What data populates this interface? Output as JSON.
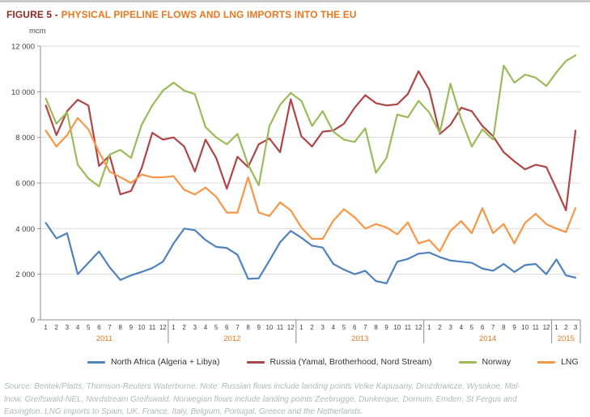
{
  "title": {
    "prefix": "FIGURE 5 -",
    "text": "PHYSICAL PIPELINE FLOWS AND LNG IMPORTS INTO THE EU"
  },
  "chart_data": {
    "type": "line",
    "unit_label": "mcm",
    "ylim": [
      0,
      12000
    ],
    "ytick_interval": 2000,
    "ytick_labels": [
      "0",
      "2 000",
      "4 000",
      "6 000",
      "8 000",
      "10 000",
      "12 000"
    ],
    "grid": true,
    "legend_position": "bottom",
    "year_bands": [
      {
        "year": "2011",
        "months": 12
      },
      {
        "year": "2012",
        "months": 12
      },
      {
        "year": "2013",
        "months": 12
      },
      {
        "year": "2014",
        "months": 12
      },
      {
        "year": "2015",
        "months": 3
      }
    ],
    "x_month_labels": [
      "1",
      "2",
      "3",
      "4",
      "5",
      "6",
      "7",
      "8",
      "9",
      "10",
      "11",
      "12",
      "1",
      "2",
      "3",
      "4",
      "5",
      "6",
      "7",
      "8",
      "9",
      "10",
      "11",
      "12",
      "1",
      "2",
      "3",
      "4",
      "5",
      "6",
      "7",
      "8",
      "9",
      "10",
      "11",
      "12",
      "1",
      "2",
      "3",
      "4",
      "5",
      "6",
      "7",
      "8",
      "9",
      "10",
      "11",
      "12",
      "1",
      "2",
      "3"
    ],
    "series": [
      {
        "id": "north-africa",
        "name": "North Africa (Algeria + Libya)",
        "color": "#4F81BD",
        "values": [
          4250,
          3570,
          3800,
          2000,
          2500,
          3000,
          2300,
          1750,
          1950,
          2100,
          2270,
          2550,
          3350,
          4000,
          3930,
          3500,
          3200,
          3150,
          2850,
          1800,
          1820,
          2600,
          3400,
          3900,
          3600,
          3250,
          3170,
          2450,
          2200,
          2000,
          2150,
          1700,
          1600,
          2550,
          2670,
          2900,
          2950,
          2750,
          2600,
          2550,
          2500,
          2250,
          2150,
          2450,
          2100,
          2400,
          2450,
          2000,
          2650,
          1950,
          1850
        ]
      },
      {
        "id": "russia",
        "name": "Russia (Yamal, Brotherhood, Nord Stream)",
        "color": "#B04548",
        "values": [
          9400,
          8100,
          9150,
          9650,
          9400,
          6750,
          7200,
          5500,
          5650,
          6650,
          8200,
          7900,
          8000,
          7600,
          6500,
          7900,
          7100,
          5750,
          7150,
          6700,
          7700,
          7950,
          7350,
          9670,
          8050,
          7600,
          8250,
          8300,
          8600,
          9300,
          9850,
          9500,
          9400,
          9450,
          9900,
          10900,
          10100,
          8150,
          8550,
          9300,
          9150,
          8500,
          8050,
          7350,
          6950,
          6600,
          6800,
          6700,
          5750,
          4800,
          8300
        ]
      },
      {
        "id": "norway",
        "name": "Norway",
        "color": "#9BBB59",
        "values": [
          9700,
          8600,
          9100,
          6800,
          6200,
          5850,
          7250,
          7450,
          7100,
          8550,
          9400,
          10050,
          10400,
          10050,
          9900,
          8450,
          8000,
          7700,
          8150,
          6800,
          5900,
          8500,
          9430,
          9950,
          9600,
          8500,
          9150,
          8250,
          7900,
          7800,
          8400,
          6450,
          7100,
          9000,
          8880,
          9600,
          9100,
          8200,
          10350,
          8800,
          7600,
          8350,
          7900,
          11150,
          10400,
          10750,
          10620,
          10250,
          10850,
          11350,
          11600
        ]
      },
      {
        "id": "lng",
        "name": "LNG",
        "color": "#F79646",
        "values": [
          8300,
          7600,
          8100,
          8850,
          8350,
          7350,
          6500,
          6250,
          6000,
          6370,
          6250,
          6250,
          6300,
          5700,
          5500,
          5800,
          5400,
          4700,
          4700,
          6250,
          4700,
          4550,
          5150,
          4800,
          4050,
          3550,
          3550,
          4350,
          4850,
          4500,
          4000,
          4200,
          4050,
          3750,
          4270,
          3350,
          3500,
          3000,
          3900,
          4330,
          3800,
          4900,
          3800,
          4200,
          3350,
          4250,
          4650,
          4200,
          4000,
          3850,
          4900
        ]
      }
    ]
  },
  "footer": {
    "lines": [
      "Source: Bentek/Platts, Thomson-Reuters Waterborne. Note: Russian flows include landing points Velke Kapusany, Drozdowicze, Wysokoe, Mal-",
      "lnow, Greifswald-NEL, Nordstream Greifswald. Norwegian flows include landing points Zeebrugge, Dunkerque, Dornum, Emden, St Fergus and",
      "Easington. LNG imports to Spain, UK, France, Italy, Belgium, Portugal, Greece and the Netherlands."
    ]
  },
  "colors": {
    "title_prefix": "#8e2a23",
    "title_main": "#e87722",
    "year_label": "#e87722",
    "grid_line": "#d9d9d9",
    "axis_line": "#8c8c8c",
    "tick_text": "#3f3f3f"
  }
}
